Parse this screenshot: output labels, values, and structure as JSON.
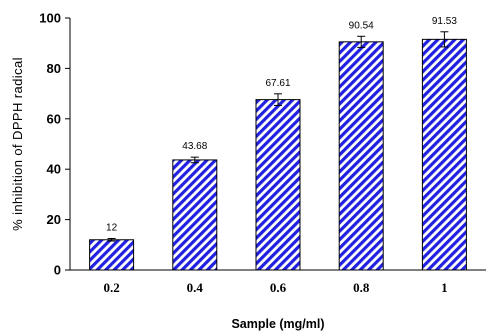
{
  "chart_data": {
    "type": "bar",
    "title": "",
    "xlabel": "Sample (mg/ml)",
    "ylabel": "% inhibition of DPPH radical",
    "categories": [
      "0.2",
      "0.4",
      "0.6",
      "0.8",
      "1"
    ],
    "series": [
      {
        "values": [
          12,
          43.68,
          67.61,
          90.54,
          91.53
        ],
        "errors": [
          0.5,
          1.1,
          2.3,
          2.2,
          3.0
        ],
        "data_labels": [
          "12",
          "43.68",
          "67.61",
          "90.54",
          "91.53"
        ]
      }
    ],
    "ylim": [
      0,
      100
    ],
    "yticks": [
      0,
      20,
      40,
      60,
      80,
      100
    ],
    "grid": false,
    "legend": "none",
    "colors": {
      "bar_stripe": "#2020e0",
      "bar_fill": "#ffffff",
      "axis": "#000000"
    }
  }
}
